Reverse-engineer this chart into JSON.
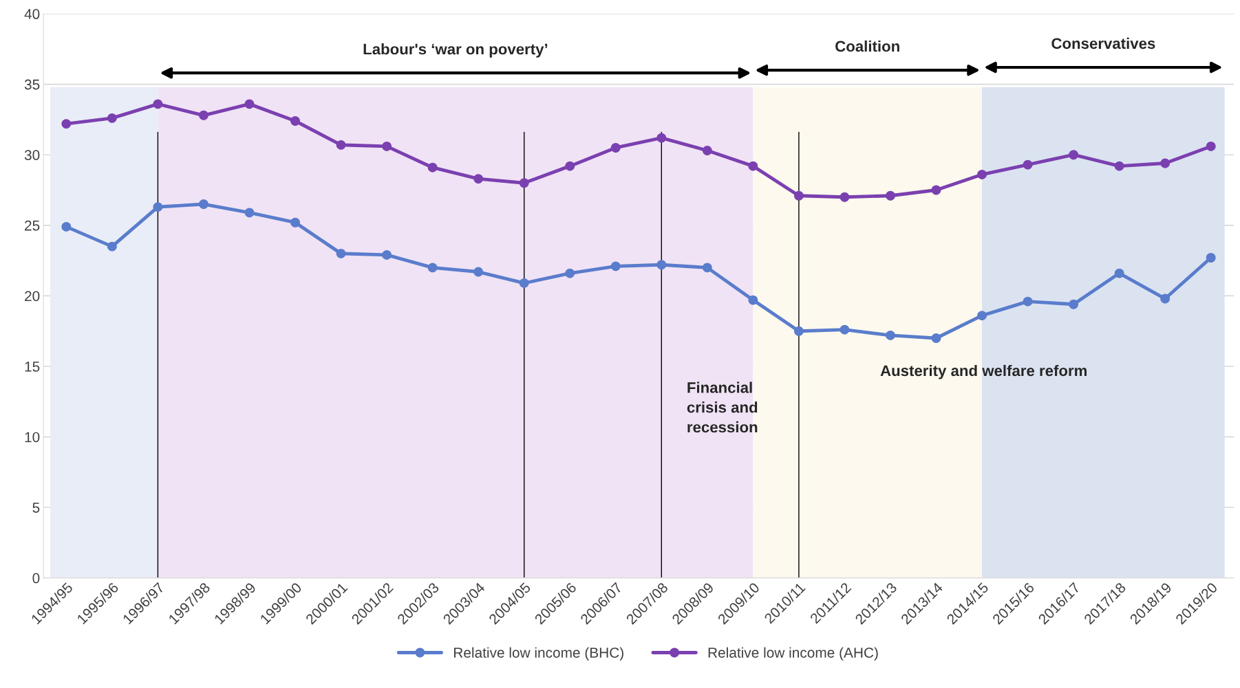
{
  "chart_data": {
    "type": "line",
    "categories": [
      "1994/95",
      "1995/96",
      "1996/97",
      "1997/98",
      "1998/99",
      "1999/00",
      "2000/01",
      "2001/02",
      "2002/03",
      "2003/04",
      "2004/05",
      "2005/06",
      "2006/07",
      "2007/08",
      "2008/09",
      "2009/10",
      "2010/11",
      "2011/12",
      "2012/13",
      "2013/14",
      "2014/15",
      "2015/16",
      "2016/17",
      "2017/18",
      "2018/19",
      "2019/20"
    ],
    "series": [
      {
        "name": "Relative low income (BHC)",
        "color": "#5a7ccc",
        "values": [
          24.9,
          23.5,
          26.3,
          26.5,
          25.9,
          25.2,
          23.0,
          22.9,
          22.0,
          21.7,
          20.9,
          21.6,
          22.1,
          22.2,
          22.0,
          19.7,
          17.5,
          17.6,
          17.2,
          17.0,
          18.6,
          19.6,
          19.4,
          21.6,
          19.8,
          22.7
        ]
      },
      {
        "name": "Relative low income (AHC)",
        "color": "#7b40b0",
        "values": [
          32.2,
          32.6,
          33.6,
          32.8,
          33.6,
          32.4,
          30.7,
          30.6,
          29.1,
          28.3,
          28.0,
          29.2,
          30.5,
          31.2,
          30.3,
          29.2,
          27.1,
          27.0,
          27.1,
          27.5,
          28.6,
          29.3,
          30.0,
          29.2,
          29.4,
          30.6
        ]
      }
    ],
    "ylim": [
      0,
      40
    ],
    "yticks": [
      0,
      5,
      10,
      15,
      20,
      25,
      30,
      35,
      40
    ],
    "grid": "y",
    "legend": "bottom",
    "marker": "circle",
    "line_style": "solid",
    "bands": [
      {
        "axis": "x",
        "from": "1994/95",
        "to": "1996/97",
        "color": "#e9edf7"
      },
      {
        "axis": "x",
        "from": "1996/97",
        "to": "2009/10",
        "color": "#f0e3f5",
        "label": "Labour's ‘war on poverty’"
      },
      {
        "axis": "x",
        "from": "2009/10",
        "to": "2014/15",
        "color": "#fdf9ee",
        "label": "Coalition"
      },
      {
        "axis": "x",
        "from": "2014/15",
        "to": "2019/20",
        "color": "#dbe3f1",
        "label": "Conservatives"
      }
    ],
    "ref_lines": [
      {
        "axis": "x",
        "value": "1996/97",
        "color": "#000000"
      },
      {
        "axis": "x",
        "value": "2004/05",
        "color": "#000000"
      },
      {
        "axis": "x",
        "value": "2007/08",
        "color": "#000000"
      },
      {
        "axis": "x",
        "value": "2010/11",
        "color": "#000000"
      }
    ],
    "annotations": [
      {
        "text": "Financial\ncrisis and\nrecession",
        "x": "2007/08",
        "y": 12
      },
      "Austerity and welfare reform"
    ]
  }
}
